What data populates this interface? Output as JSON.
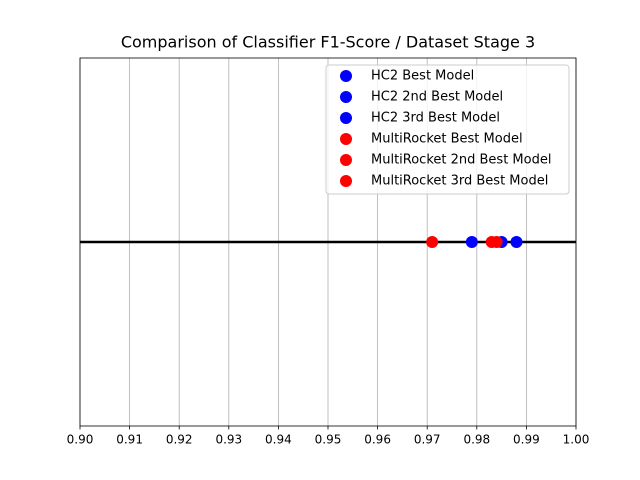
{
  "chart_data": {
    "type": "scatter",
    "title": "Comparison of Classifier F1-Score / Dataset Stage 3",
    "series": [
      {
        "name": "HC2 Best Model",
        "color": "#0000ff",
        "values": [
          0.988
        ]
      },
      {
        "name": "HC2 2nd Best Model",
        "color": "#0000ff",
        "values": [
          0.985
        ]
      },
      {
        "name": "HC2 3rd Best Model",
        "color": "#0000ff",
        "values": [
          0.979
        ]
      },
      {
        "name": "MultiRocket Best Model",
        "color": "#ff0000",
        "values": [
          0.984
        ]
      },
      {
        "name": "MultiRocket 2nd Best Model",
        "color": "#ff0000",
        "values": [
          0.983
        ]
      },
      {
        "name": "MultiRocket 3rd Best Model",
        "color": "#ff0000",
        "values": [
          0.971
        ]
      }
    ],
    "xlim": [
      0.9,
      1.0
    ],
    "xticks": [
      {
        "value": 0.9,
        "label": "0.90"
      },
      0.91,
      0.92,
      0.93,
      0.94,
      0.95,
      0.96,
      0.97,
      0.98,
      0.99,
      {
        "value": 1.0,
        "label": "1.00"
      }
    ],
    "grid": true,
    "legend": "upper right"
  }
}
